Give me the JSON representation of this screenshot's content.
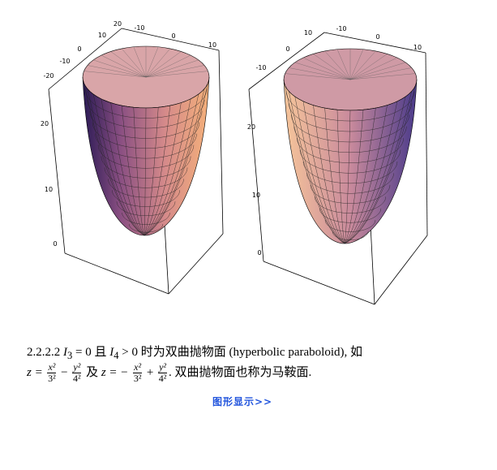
{
  "figures": [
    {
      "ticks": [
        "20",
        "10",
        "0",
        "-10",
        "-20",
        "-10",
        "0",
        "10",
        "20",
        "10",
        "0"
      ]
    },
    {
      "ticks": [
        "10",
        "0",
        "-10",
        "-10",
        "0",
        "10",
        "20",
        "10",
        "0"
      ]
    }
  ],
  "paragraph": {
    "number": "2.2.2.2",
    "i": "I",
    "sub3": "3",
    "eq0": "= 0",
    "and": "且",
    "sub4": "4",
    "gt0": "> 0",
    "desc": "时为双曲抛物面 (hyperbolic paraboloid), 如",
    "z": "z =",
    "x2": "x²",
    "d3": "3²",
    "minus": "−",
    "y2": "y²",
    "d4": "4²",
    "ji": "及",
    "zneg": "z = −",
    "plus": "+",
    "end": ". 双曲抛物面也称为马鞍面."
  },
  "link": "图形显示>>"
}
